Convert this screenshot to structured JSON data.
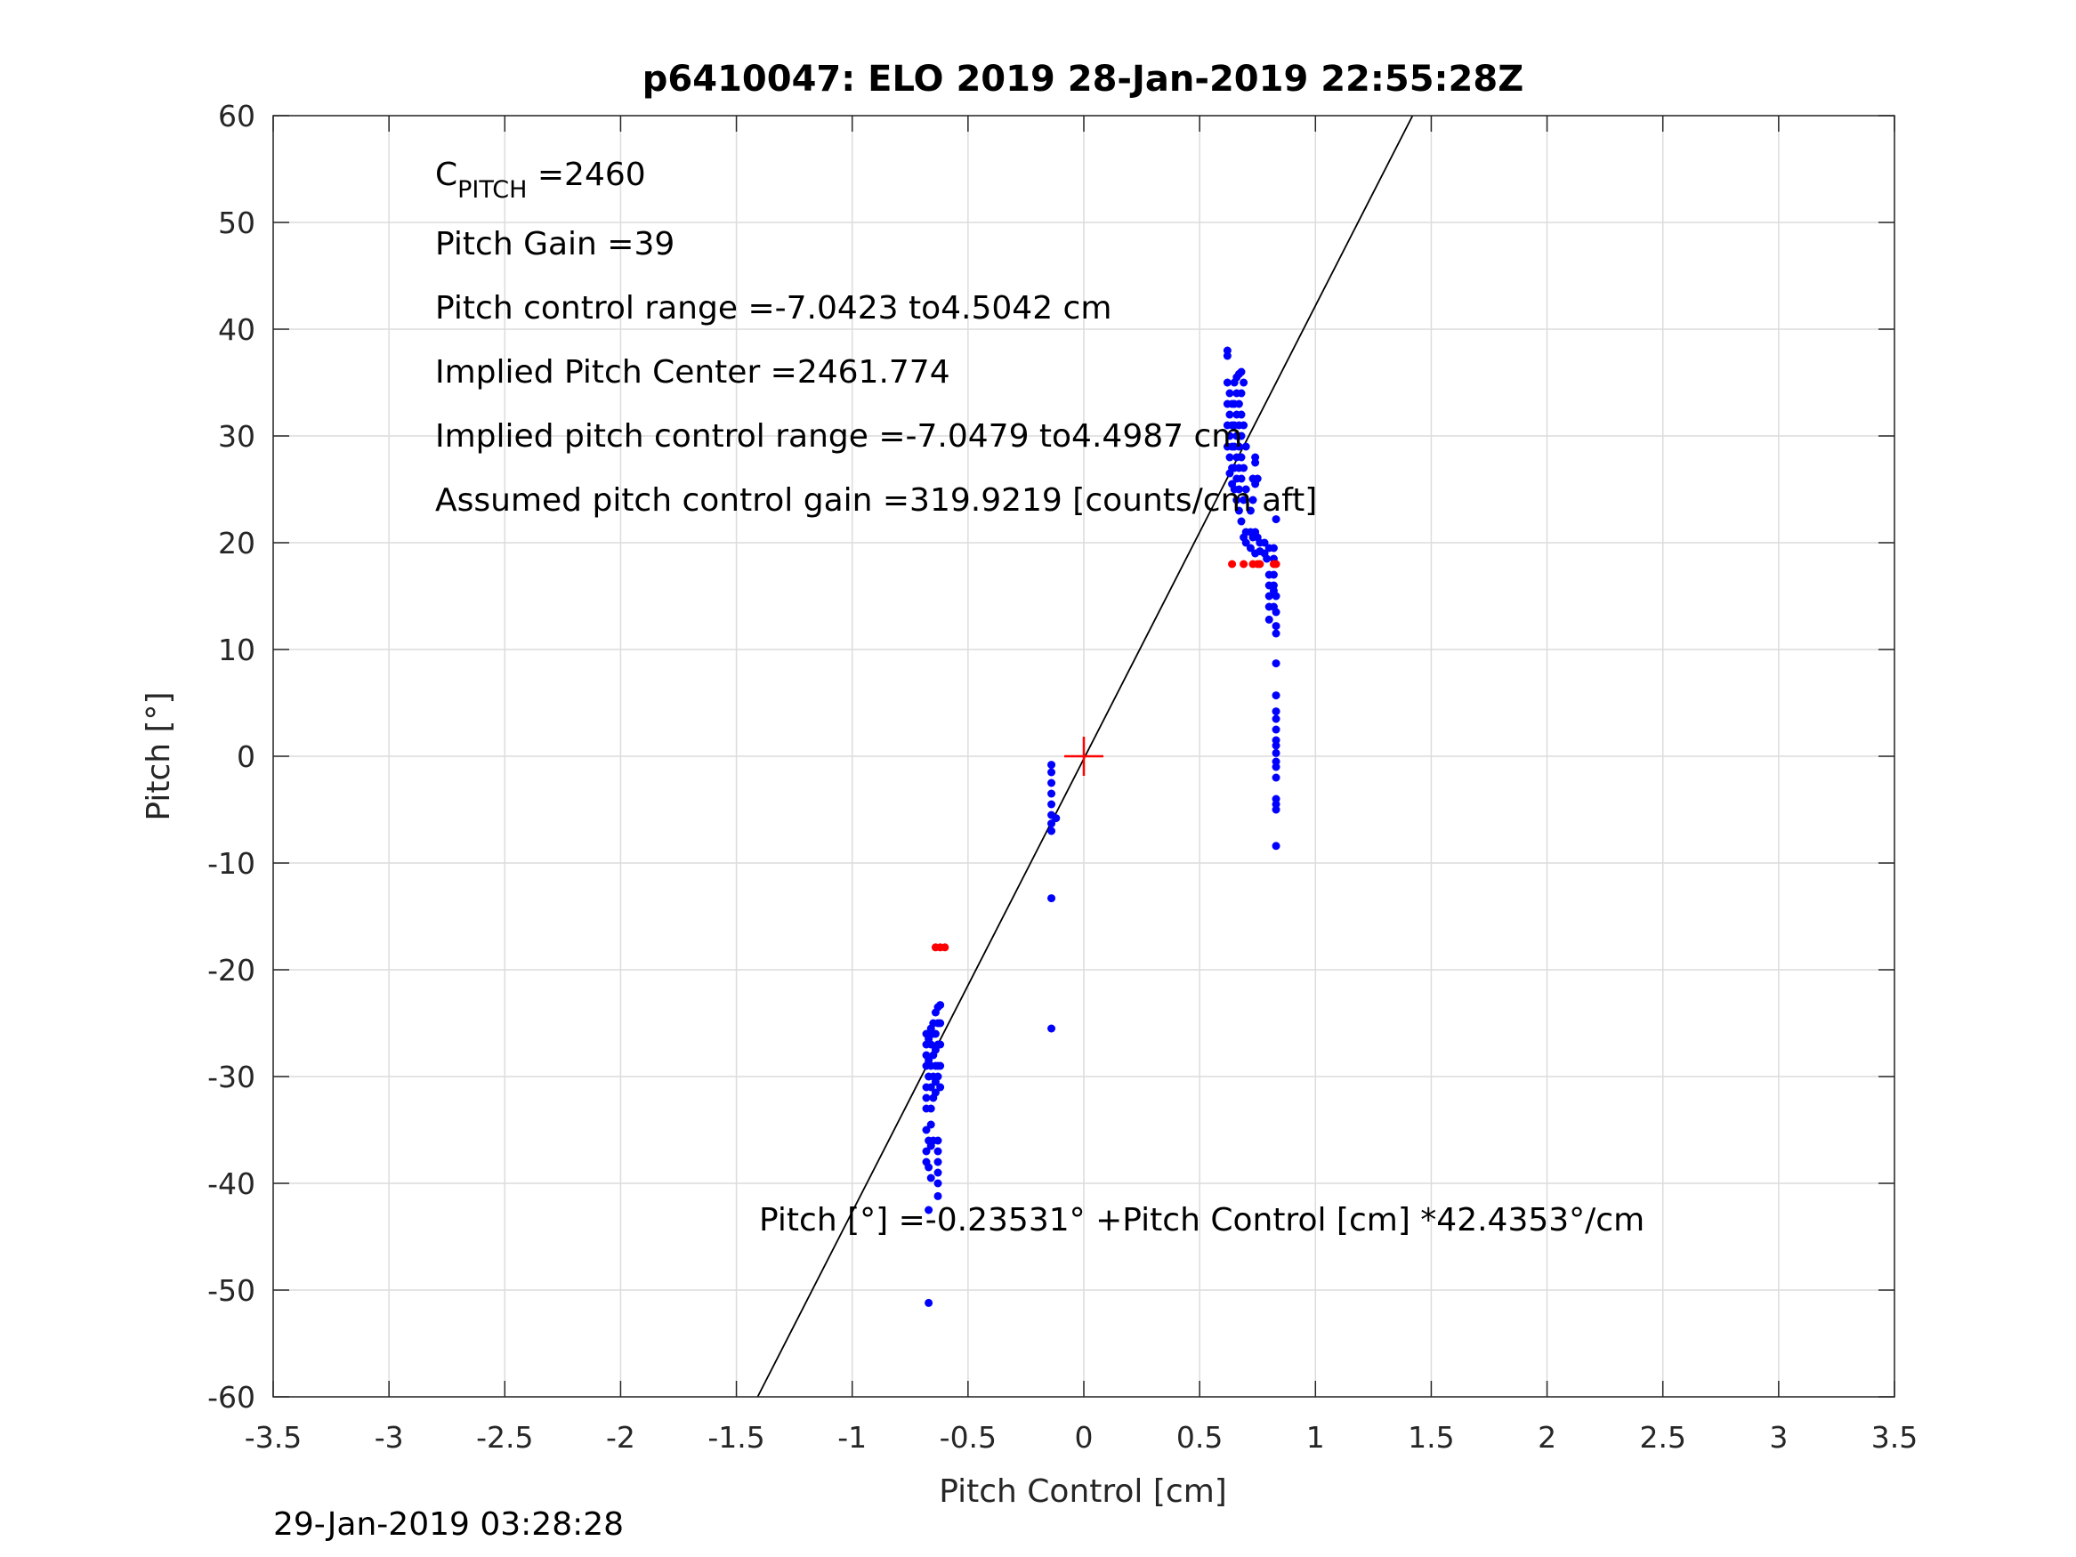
{
  "chart_data": {
    "type": "scatter",
    "title": "p6410047: ELO 2019 28-Jan-2019 22:55:28Z",
    "xlabel": "Pitch Control [cm]",
    "ylabel": "Pitch [°]",
    "xlim": [
      -3.5,
      3.5
    ],
    "ylim": [
      -60,
      60
    ],
    "xticks": [
      "-3.5",
      "-3",
      "-2.5",
      "-2",
      "-1.5",
      "-1",
      "-0.5",
      "0",
      "0.5",
      "1",
      "1.5",
      "2",
      "2.5",
      "3",
      "3.5"
    ],
    "xtick_values": [
      -3.5,
      -3,
      -2.5,
      -2,
      -1.5,
      -1,
      -0.5,
      0,
      0.5,
      1,
      1.5,
      2,
      2.5,
      3,
      3.5
    ],
    "yticks": [
      "60",
      "50",
      "40",
      "30",
      "20",
      "10",
      "0",
      "-10",
      "-20",
      "-30",
      "-40",
      "-50",
      "-60"
    ],
    "ytick_values": [
      60,
      50,
      40,
      30,
      20,
      10,
      0,
      -10,
      -20,
      -30,
      -40,
      -50,
      -60
    ],
    "grid": true,
    "fit_line": {
      "intercept": -0.23531,
      "slope": 42.4353,
      "color": "#000000"
    },
    "center_marker": {
      "x": 0,
      "y": 0,
      "color": "#ff0000"
    },
    "series": [
      {
        "name": "measured",
        "color": "#0000ff",
        "points": [
          [
            -0.68,
            -26
          ],
          [
            -0.68,
            -27
          ],
          [
            -0.68,
            -28
          ],
          [
            -0.68,
            -29
          ],
          [
            -0.68,
            -31
          ],
          [
            -0.68,
            -32
          ],
          [
            -0.68,
            -33
          ],
          [
            -0.68,
            -35
          ],
          [
            -0.68,
            -37
          ],
          [
            -0.68,
            -38
          ],
          [
            -0.67,
            -26.5
          ],
          [
            -0.67,
            -28.5
          ],
          [
            -0.67,
            -30
          ],
          [
            -0.67,
            -36
          ],
          [
            -0.67,
            -38.5
          ],
          [
            -0.67,
            -42.5
          ],
          [
            -0.67,
            -51.2
          ],
          [
            -0.66,
            -25.5
          ],
          [
            -0.66,
            -27
          ],
          [
            -0.66,
            -29
          ],
          [
            -0.66,
            -31
          ],
          [
            -0.66,
            -33
          ],
          [
            -0.66,
            -34.5
          ],
          [
            -0.66,
            -36.5
          ],
          [
            -0.66,
            -39.5
          ],
          [
            -0.65,
            -25
          ],
          [
            -0.65,
            -26
          ],
          [
            -0.65,
            -28
          ],
          [
            -0.65,
            -30
          ],
          [
            -0.65,
            -32
          ],
          [
            -0.65,
            -36
          ],
          [
            -0.64,
            -24
          ],
          [
            -0.64,
            -26
          ],
          [
            -0.64,
            -27.5
          ],
          [
            -0.64,
            -29
          ],
          [
            -0.64,
            -30.5
          ],
          [
            -0.64,
            -31.5
          ],
          [
            -0.63,
            -23.5
          ],
          [
            -0.63,
            -25
          ],
          [
            -0.63,
            -27
          ],
          [
            -0.63,
            -29
          ],
          [
            -0.63,
            -30
          ],
          [
            -0.63,
            -36
          ],
          [
            -0.63,
            -37
          ],
          [
            -0.63,
            -38
          ],
          [
            -0.63,
            -39
          ],
          [
            -0.63,
            -40
          ],
          [
            -0.63,
            -41.2
          ],
          [
            -0.62,
            -23.3
          ],
          [
            -0.62,
            -25
          ],
          [
            -0.62,
            -27
          ],
          [
            -0.62,
            -29
          ],
          [
            -0.62,
            -31
          ],
          [
            -0.14,
            -0.8
          ],
          [
            -0.14,
            -1.5
          ],
          [
            -0.14,
            -2.5
          ],
          [
            -0.14,
            -3.5
          ],
          [
            -0.14,
            -4.5
          ],
          [
            -0.14,
            -5.5
          ],
          [
            -0.14,
            -6.3
          ],
          [
            -0.14,
            -7
          ],
          [
            -0.12,
            -5.8
          ],
          [
            -0.14,
            -13.3
          ],
          [
            -0.14,
            -25.5
          ],
          [
            0.62,
            38
          ],
          [
            0.62,
            37.5
          ],
          [
            0.62,
            35
          ],
          [
            0.62,
            33
          ],
          [
            0.62,
            31
          ],
          [
            0.62,
            29
          ],
          [
            0.63,
            34
          ],
          [
            0.63,
            32
          ],
          [
            0.63,
            30
          ],
          [
            0.63,
            28
          ],
          [
            0.63,
            26.5
          ],
          [
            0.64,
            33
          ],
          [
            0.64,
            31
          ],
          [
            0.64,
            29
          ],
          [
            0.64,
            27
          ],
          [
            0.64,
            25.5
          ],
          [
            0.65,
            35
          ],
          [
            0.65,
            33
          ],
          [
            0.65,
            31
          ],
          [
            0.65,
            29
          ],
          [
            0.65,
            27
          ],
          [
            0.65,
            25
          ],
          [
            0.66,
            35.5
          ],
          [
            0.66,
            34
          ],
          [
            0.66,
            32
          ],
          [
            0.66,
            30
          ],
          [
            0.66,
            28
          ],
          [
            0.66,
            26
          ],
          [
            0.66,
            24
          ],
          [
            0.67,
            35.8
          ],
          [
            0.67,
            33
          ],
          [
            0.67,
            31
          ],
          [
            0.67,
            29
          ],
          [
            0.67,
            27
          ],
          [
            0.67,
            25
          ],
          [
            0.67,
            23
          ],
          [
            0.68,
            36
          ],
          [
            0.68,
            34
          ],
          [
            0.68,
            32
          ],
          [
            0.68,
            30
          ],
          [
            0.68,
            28
          ],
          [
            0.68,
            26
          ],
          [
            0.68,
            22
          ],
          [
            0.69,
            35
          ],
          [
            0.69,
            31
          ],
          [
            0.69,
            27
          ],
          [
            0.69,
            24
          ],
          [
            0.69,
            20.5
          ],
          [
            0.7,
            29
          ],
          [
            0.7,
            25
          ],
          [
            0.7,
            21
          ],
          [
            0.7,
            20
          ],
          [
            0.72,
            23
          ],
          [
            0.72,
            21
          ],
          [
            0.72,
            19.5
          ],
          [
            0.73,
            26
          ],
          [
            0.73,
            24
          ],
          [
            0.73,
            20.5
          ],
          [
            0.74,
            28
          ],
          [
            0.74,
            27.5
          ],
          [
            0.74,
            25.5
          ],
          [
            0.74,
            21
          ],
          [
            0.74,
            19
          ],
          [
            0.75,
            26
          ],
          [
            0.75,
            20.5
          ],
          [
            0.76,
            20
          ],
          [
            0.76,
            19.2
          ],
          [
            0.78,
            20
          ],
          [
            0.78,
            19
          ],
          [
            0.79,
            18.5
          ],
          [
            0.8,
            19.5
          ],
          [
            0.8,
            17
          ],
          [
            0.8,
            16
          ],
          [
            0.8,
            15
          ],
          [
            0.8,
            14
          ],
          [
            0.8,
            12.8
          ],
          [
            0.82,
            19.5
          ],
          [
            0.82,
            18.5
          ],
          [
            0.82,
            17
          ],
          [
            0.82,
            16
          ],
          [
            0.82,
            15.5
          ],
          [
            0.82,
            14
          ],
          [
            0.83,
            22.2
          ],
          [
            0.83,
            15
          ],
          [
            0.83,
            13.5
          ],
          [
            0.83,
            12.2
          ],
          [
            0.83,
            11.5
          ],
          [
            0.83,
            8.7
          ],
          [
            0.83,
            5.7
          ],
          [
            0.83,
            4.2
          ],
          [
            0.83,
            3.5
          ],
          [
            0.83,
            2.5
          ],
          [
            0.83,
            1.5
          ],
          [
            0.83,
            1
          ],
          [
            0.83,
            0.3
          ],
          [
            0.83,
            -0.5
          ],
          [
            0.83,
            -1
          ],
          [
            0.83,
            -2
          ],
          [
            0.83,
            -4
          ],
          [
            0.83,
            -4.5
          ],
          [
            0.83,
            -5
          ],
          [
            0.83,
            -8.4
          ]
        ]
      },
      {
        "name": "limits",
        "color": "#ff0000",
        "points": [
          [
            -0.64,
            -17.9
          ],
          [
            -0.62,
            -17.9
          ],
          [
            -0.6,
            -17.9
          ],
          [
            0.64,
            18
          ],
          [
            0.69,
            18
          ],
          [
            0.73,
            18
          ],
          [
            0.75,
            18
          ],
          [
            0.76,
            18
          ],
          [
            0.82,
            18
          ],
          [
            0.83,
            18
          ]
        ]
      }
    ],
    "annotations": {
      "c_pitch_main": "C",
      "c_pitch_sub": "PITCH",
      "c_pitch_value": " =2460",
      "pitch_gain": "Pitch Gain =39",
      "control_range": "Pitch control range =-7.0423 to4.5042 cm",
      "implied_center": "Implied Pitch Center =2461.774",
      "implied_range": "Implied pitch control range =-7.0479 to4.4987 cm",
      "assumed_gain": "Assumed pitch control gain =319.9219 [counts/cm aft]",
      "equation": "Pitch [°] =-0.23531° +Pitch Control [cm] *42.4353°/cm"
    }
  },
  "footer": {
    "timestamp": "29-Jan-2019 03:28:28"
  }
}
